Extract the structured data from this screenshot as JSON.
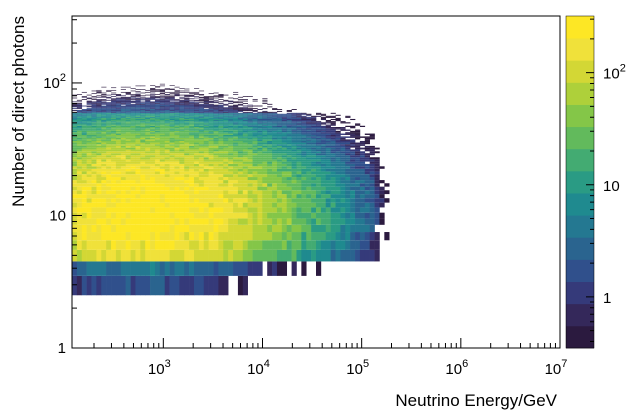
{
  "chart_data": {
    "type": "heatmap",
    "xlabel": "Neutrino Energy/GeV",
    "ylabel": "Number of direct photons",
    "x_scale": "log",
    "y_scale": "log",
    "xlim": [
      120,
      10000000
    ],
    "ylim": [
      1,
      320
    ],
    "x_ticks": [
      {
        "value": 1000,
        "base": "10",
        "exp": "3"
      },
      {
        "value": 10000,
        "base": "10",
        "exp": "4"
      },
      {
        "value": 100000,
        "base": "10",
        "exp": "5"
      },
      {
        "value": 1000000,
        "base": "10",
        "exp": "6"
      },
      {
        "value": 10000000,
        "base": "10",
        "exp": "7"
      }
    ],
    "y_ticks": [
      {
        "value": 1,
        "base": "1",
        "exp": ""
      },
      {
        "value": 10,
        "base": "10",
        "exp": ""
      },
      {
        "value": 100,
        "base": "10",
        "exp": "2"
      }
    ],
    "colorbar": {
      "scale": "log",
      "range": [
        0.35,
        320
      ],
      "ticks": [
        {
          "value": 1,
          "base": "1",
          "exp": ""
        },
        {
          "value": 10,
          "base": "10",
          "exp": ""
        },
        {
          "value": 100,
          "base": "10",
          "exp": "2"
        }
      ],
      "palette": [
        "#2b1a3f",
        "#34285a",
        "#353a7a",
        "#30508c",
        "#2a648f",
        "#247891",
        "#1f8a8f",
        "#2a9b84",
        "#43ab72",
        "#62ba5c",
        "#84c648",
        "#aed03a",
        "#d3d735",
        "#f0e13a",
        "#fde725"
      ]
    },
    "density_model": {
      "log_energy_peak": 2.75,
      "log_energy_spread_low": 0.55,
      "log_energy_spread_high": 0.75,
      "photon_peak": 11,
      "peak_counts": 320,
      "max_log_energy": 5.1
    }
  }
}
